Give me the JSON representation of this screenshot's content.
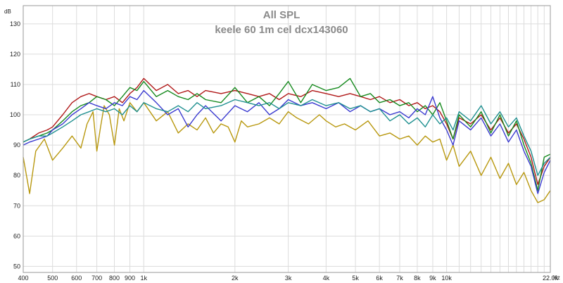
{
  "chart_data": {
    "type": "line",
    "title": "All SPL",
    "subtitle": "keele 60 1m cel dcx143060",
    "ylabel": "dB",
    "xunit": "Hz",
    "xscale": "log",
    "xlim": [
      400,
      22000
    ],
    "ylim": [
      48,
      136
    ],
    "grid": true,
    "legend": "none",
    "x_ticks": [
      {
        "v": 400,
        "label": "400"
      },
      {
        "v": 500,
        "label": "500"
      },
      {
        "v": 600,
        "label": "600"
      },
      {
        "v": 700,
        "label": "700"
      },
      {
        "v": 800,
        "label": "800"
      },
      {
        "v": 900,
        "label": "900"
      },
      {
        "v": 1000,
        "label": "1k"
      },
      {
        "v": 2000,
        "label": "2k"
      },
      {
        "v": 3000,
        "label": "3k"
      },
      {
        "v": 4000,
        "label": "4k"
      },
      {
        "v": 5000,
        "label": "5k"
      },
      {
        "v": 6000,
        "label": "6k"
      },
      {
        "v": 7000,
        "label": "7k"
      },
      {
        "v": 8000,
        "label": "8k"
      },
      {
        "v": 9000,
        "label": "9k"
      },
      {
        "v": 10000,
        "label": "10k"
      },
      {
        "v": 22000,
        "label": "22.0k"
      }
    ],
    "y_ticks": [
      50,
      60,
      70,
      80,
      90,
      100,
      110,
      120,
      130
    ],
    "series": [
      {
        "color": "#b8980f",
        "x": [
          400,
          410,
          420,
          440,
          470,
          500,
          540,
          580,
          620,
          650,
          680,
          700,
          720,
          740,
          770,
          800,
          830,
          860,
          900,
          950,
          1000,
          1100,
          1200,
          1300,
          1400,
          1500,
          1600,
          1700,
          1800,
          1900,
          2000,
          2100,
          2200,
          2400,
          2600,
          2800,
          3000,
          3200,
          3500,
          3800,
          4000,
          4300,
          4600,
          5000,
          5500,
          6000,
          6500,
          7000,
          7500,
          8000,
          8500,
          9000,
          9500,
          10000,
          10500,
          11000,
          12000,
          13000,
          14000,
          15000,
          16000,
          17000,
          18000,
          19000,
          20000,
          21000,
          22000
        ],
        "values": [
          86,
          80,
          74,
          88,
          92,
          85,
          89,
          93,
          89,
          97,
          101,
          88,
          96,
          103,
          100,
          90,
          102,
          98,
          104,
          101,
          104,
          98,
          101,
          94,
          97,
          95,
          99,
          94,
          97,
          96,
          91,
          98,
          96,
          97,
          99,
          97,
          101,
          99,
          97,
          100,
          98,
          96,
          97,
          95,
          98,
          93,
          94,
          92,
          93,
          90,
          93,
          91,
          92,
          85,
          90,
          83,
          88,
          80,
          86,
          79,
          84,
          77,
          81,
          75,
          71,
          72,
          75
        ]
      },
      {
        "color": "#b01818",
        "x": [
          400,
          420,
          450,
          480,
          500,
          540,
          580,
          620,
          660,
          700,
          750,
          800,
          850,
          900,
          950,
          1000,
          1100,
          1200,
          1300,
          1400,
          1500,
          1600,
          1800,
          2000,
          2200,
          2400,
          2600,
          2800,
          3000,
          3300,
          3600,
          4000,
          4400,
          4800,
          5200,
          5600,
          6000,
          6500,
          7000,
          7500,
          8000,
          8500,
          9000,
          9500,
          10000,
          10500,
          11000,
          12000,
          13000,
          14000,
          15000,
          16000,
          17000,
          18000,
          19000,
          20000,
          21000,
          22000
        ],
        "values": [
          91,
          92,
          94,
          95,
          96,
          100,
          104,
          106,
          107,
          106,
          105,
          106,
          104,
          107,
          109,
          112,
          108,
          110,
          107,
          108,
          106,
          108,
          107,
          108,
          107,
          106,
          107,
          105,
          107,
          106,
          108,
          107,
          106,
          107,
          106,
          105,
          106,
          104,
          105,
          103,
          104,
          102,
          103,
          101,
          97,
          92,
          99,
          97,
          100,
          95,
          99,
          94,
          97,
          92,
          86,
          77,
          83,
          86
        ]
      },
      {
        "color": "#168a1e",
        "x": [
          400,
          420,
          450,
          480,
          500,
          540,
          580,
          620,
          660,
          700,
          750,
          800,
          850,
          900,
          950,
          1000,
          1100,
          1200,
          1300,
          1400,
          1500,
          1600,
          1800,
          2000,
          2200,
          2400,
          2600,
          2800,
          3000,
          3300,
          3600,
          4000,
          4400,
          4800,
          5200,
          5600,
          6000,
          6500,
          7000,
          7500,
          8000,
          8500,
          9000,
          9500,
          10000,
          10500,
          11000,
          12000,
          13000,
          14000,
          15000,
          16000,
          17000,
          18000,
          19000,
          20000,
          21000,
          22000
        ],
        "values": [
          91,
          92,
          93,
          94,
          95,
          98,
          101,
          103,
          104,
          106,
          105,
          103,
          106,
          109,
          108,
          111,
          106,
          108,
          106,
          105,
          107,
          105,
          104,
          109,
          104,
          106,
          103,
          107,
          111,
          104,
          110,
          108,
          109,
          112,
          106,
          107,
          104,
          105,
          103,
          104,
          101,
          103,
          100,
          104,
          98,
          92,
          100,
          96,
          101,
          94,
          100,
          93,
          98,
          90,
          84,
          75,
          86,
          87
        ]
      },
      {
        "color": "#3a3ad0",
        "x": [
          400,
          420,
          450,
          480,
          500,
          540,
          580,
          620,
          660,
          700,
          750,
          800,
          850,
          900,
          950,
          1000,
          1100,
          1200,
          1300,
          1400,
          1500,
          1600,
          1800,
          2000,
          2200,
          2400,
          2600,
          2800,
          3000,
          3300,
          3600,
          4000,
          4400,
          4800,
          5200,
          5600,
          6000,
          6500,
          7000,
          7500,
          8000,
          8500,
          9000,
          9500,
          10000,
          10500,
          11000,
          12000,
          13000,
          14000,
          15000,
          16000,
          17000,
          18000,
          19000,
          20000,
          21000,
          22000
        ],
        "values": [
          90,
          91,
          92,
          93,
          95,
          97,
          100,
          102,
          104,
          103,
          102,
          104,
          103,
          106,
          105,
          108,
          104,
          100,
          102,
          96,
          100,
          103,
          98,
          103,
          101,
          104,
          100,
          102,
          105,
          103,
          104,
          102,
          104,
          101,
          103,
          101,
          102,
          100,
          101,
          99,
          102,
          100,
          106,
          99,
          95,
          90,
          98,
          95,
          99,
          93,
          97,
          91,
          95,
          88,
          83,
          74,
          81,
          85
        ]
      },
      {
        "color": "#1f9090",
        "x": [
          400,
          420,
          450,
          480,
          500,
          540,
          580,
          620,
          660,
          700,
          750,
          800,
          850,
          900,
          950,
          1000,
          1100,
          1200,
          1300,
          1400,
          1500,
          1600,
          1800,
          2000,
          2200,
          2400,
          2600,
          2800,
          3000,
          3300,
          3600,
          4000,
          4400,
          4800,
          5200,
          5600,
          6000,
          6500,
          7000,
          7500,
          8000,
          8500,
          9000,
          9500,
          10000,
          10500,
          11000,
          12000,
          13000,
          14000,
          15000,
          16000,
          17000,
          18000,
          19000,
          20000,
          21000,
          22000
        ],
        "values": [
          91,
          92,
          93,
          93,
          94,
          96,
          98,
          100,
          101,
          102,
          101,
          102,
          100,
          103,
          101,
          104,
          102,
          101,
          103,
          101,
          104,
          102,
          103,
          105,
          104,
          103,
          104,
          102,
          104,
          103,
          105,
          103,
          104,
          102,
          103,
          101,
          102,
          98,
          100,
          97,
          99,
          96,
          100,
          97,
          99,
          95,
          101,
          98,
          103,
          97,
          101,
          96,
          99,
          93,
          88,
          80,
          84,
          86
        ]
      }
    ]
  }
}
